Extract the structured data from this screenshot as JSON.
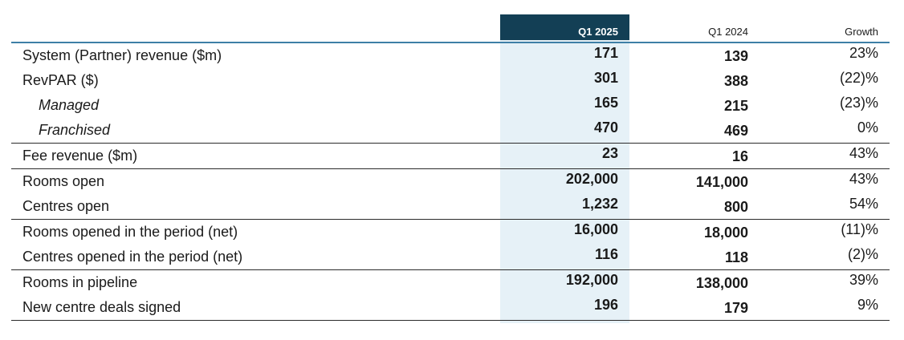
{
  "header": {
    "q1_2025": "Q1 2025",
    "q1_2024": "Q1 2024",
    "growth": "Growth"
  },
  "groups": [
    {
      "rows": [
        {
          "label": "System (Partner) revenue ($m)",
          "q1_2025": "171",
          "q1_2024": "139",
          "growth": "23%"
        },
        {
          "label": "RevPAR ($)",
          "q1_2025": "301",
          "q1_2024": "388",
          "growth": "(22)%"
        },
        {
          "label": "Managed",
          "q1_2025": "165",
          "q1_2024": "215",
          "growth": "(23)%"
        },
        {
          "label": "Franchised",
          "q1_2025": "470",
          "q1_2024": "469",
          "growth": "0%"
        }
      ]
    },
    {
      "rows": [
        {
          "label": "Fee revenue ($m)",
          "q1_2025": "23",
          "q1_2024": "16",
          "growth": "43%"
        }
      ]
    },
    {
      "rows": [
        {
          "label": "Rooms open",
          "q1_2025": "202,000",
          "q1_2024": "141,000",
          "growth": "43%"
        },
        {
          "label": "Centres open",
          "q1_2025": "1,232",
          "q1_2024": "800",
          "growth": "54%"
        }
      ]
    },
    {
      "rows": [
        {
          "label": "Rooms opened in the period (net)",
          "q1_2025": "16,000",
          "q1_2024": "18,000",
          "growth": "(11)%"
        },
        {
          "label": "Centres opened in the period (net)",
          "q1_2025": "116",
          "q1_2024": "118",
          "growth": "(2)%"
        }
      ]
    },
    {
      "rows": [
        {
          "label": "Rooms in pipeline",
          "q1_2025": "192,000",
          "q1_2024": "138,000",
          "growth": "39%"
        },
        {
          "label": "New centre deals signed",
          "q1_2025": "196",
          "q1_2024": "179",
          "growth": "9%"
        }
      ]
    }
  ]
}
